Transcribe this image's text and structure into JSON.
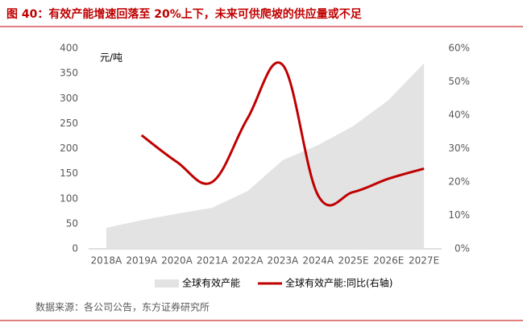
{
  "title": "图 40：有效产能增速回落至 20%上下，未来可供爬坡的供应量或不足",
  "source": "数据来源：各公司公告，东方证券研究所",
  "chart_data": {
    "type": "area-line",
    "y_unit_label": "元/吨",
    "categories": [
      "2018A",
      "2019A",
      "2020A",
      "2021A",
      "2022A",
      "2023A",
      "2024A",
      "2025E",
      "2026E",
      "2027E"
    ],
    "series": [
      {
        "name": "全球有效产能",
        "type": "area",
        "color": "#e3e3e3",
        "values": [
          42,
          57,
          70,
          82,
          115,
          177,
          207,
          245,
          297,
          370
        ]
      },
      {
        "name": "全球有效产能:同比(右轴)",
        "type": "line",
        "axis": "y2",
        "color": "#c00000",
        "values": [
          null,
          34,
          26,
          20,
          39,
          55,
          16,
          17,
          21,
          24
        ]
      }
    ],
    "ylim": [
      0,
      400
    ],
    "yticks": [
      0,
      50,
      100,
      150,
      200,
      250,
      300,
      350,
      400
    ],
    "y2lim": [
      0,
      60
    ],
    "y2ticks": [
      {
        "value": 0,
        "label": "0%"
      },
      {
        "value": 10,
        "label": "10%"
      },
      {
        "value": 20,
        "label": "20%"
      },
      {
        "value": 30,
        "label": "30%"
      },
      {
        "value": 40,
        "label": "40%"
      },
      {
        "value": 50,
        "label": "50%"
      },
      {
        "value": 60,
        "label": "60%"
      }
    ],
    "legend": "bottom"
  }
}
